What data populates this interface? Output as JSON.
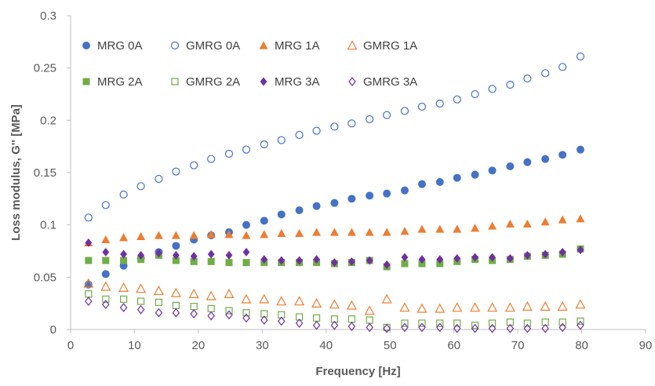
{
  "chart_data": {
    "type": "scatter",
    "title": "",
    "xlabel": "Frequency [Hz]",
    "ylabel": "Loss modulus, G'' [MPa]",
    "xlim": [
      0,
      90
    ],
    "ylim": [
      0,
      0.3
    ],
    "x_ticks": [
      "0",
      "10",
      "20",
      "30",
      "40",
      "50",
      "60",
      "70",
      "80",
      "90"
    ],
    "y_ticks": [
      "0",
      "0.05",
      "0.1",
      "0.15",
      "0.2",
      "0.25",
      "0.3"
    ],
    "grid": false,
    "legend_position": "top-left, inside plot, 4 columns x 2 rows",
    "x": [
      2.8,
      5.5,
      8.3,
      11.0,
      13.8,
      16.5,
      19.3,
      22.0,
      24.8,
      27.5,
      30.3,
      33.0,
      35.8,
      38.5,
      41.3,
      44.0,
      46.8,
      49.5,
      52.3,
      55.0,
      57.8,
      60.5,
      63.3,
      66.0,
      68.8,
      71.5,
      74.3,
      77.0,
      79.8
    ],
    "series": [
      {
        "name": "MRG 0A",
        "color": "#4472C4",
        "marker": "circle",
        "filled": true,
        "values": [
          0.043,
          0.053,
          0.061,
          0.068,
          0.074,
          0.08,
          0.086,
          0.09,
          0.093,
          0.1,
          0.104,
          0.11,
          0.114,
          0.118,
          0.121,
          0.125,
          0.128,
          0.13,
          0.133,
          0.139,
          0.141,
          0.145,
          0.148,
          0.152,
          0.156,
          0.16,
          0.163,
          0.167,
          0.172
        ]
      },
      {
        "name": "GMRG 0A",
        "color": "#4472C4",
        "marker": "circle",
        "filled": false,
        "values": [
          0.107,
          0.119,
          0.129,
          0.137,
          0.144,
          0.151,
          0.157,
          0.163,
          0.168,
          0.172,
          0.177,
          0.181,
          0.186,
          0.19,
          0.194,
          0.197,
          0.201,
          0.205,
          0.209,
          0.213,
          0.216,
          0.22,
          0.225,
          0.23,
          0.234,
          0.24,
          0.245,
          0.251,
          0.261
        ]
      },
      {
        "name": "MRG 1A",
        "color": "#ED7D31",
        "marker": "triangle",
        "filled": true,
        "values": [
          0.083,
          0.086,
          0.088,
          0.089,
          0.09,
          0.09,
          0.09,
          0.091,
          0.091,
          0.09,
          0.091,
          0.092,
          0.092,
          0.093,
          0.093,
          0.093,
          0.093,
          0.093,
          0.094,
          0.096,
          0.096,
          0.096,
          0.097,
          0.099,
          0.101,
          0.101,
          0.103,
          0.105,
          0.106
        ]
      },
      {
        "name": "GMRG 1A",
        "color": "#ED7D31",
        "marker": "triangle",
        "filled": false,
        "values": [
          0.044,
          0.041,
          0.04,
          0.039,
          0.037,
          0.035,
          0.034,
          0.032,
          0.034,
          0.029,
          0.029,
          0.027,
          0.027,
          0.025,
          0.024,
          0.023,
          0.018,
          0.029,
          0.021,
          0.02,
          0.02,
          0.021,
          0.021,
          0.021,
          0.021,
          0.022,
          0.022,
          0.022,
          0.024
        ]
      },
      {
        "name": "MRG 2A",
        "color": "#70AD47",
        "marker": "square",
        "filled": true,
        "values": [
          0.066,
          0.066,
          0.066,
          0.067,
          0.071,
          0.066,
          0.065,
          0.065,
          0.064,
          0.064,
          0.064,
          0.064,
          0.064,
          0.064,
          0.063,
          0.064,
          0.066,
          0.06,
          0.063,
          0.063,
          0.063,
          0.065,
          0.067,
          0.066,
          0.067,
          0.07,
          0.071,
          0.072,
          0.077
        ]
      },
      {
        "name": "GMRG 2A",
        "color": "#70AD47",
        "marker": "square",
        "filled": false,
        "values": [
          0.034,
          0.029,
          0.029,
          0.027,
          0.026,
          0.023,
          0.022,
          0.02,
          0.018,
          0.016,
          0.015,
          0.014,
          0.012,
          0.011,
          0.01,
          0.01,
          0.009,
          0.002,
          0.006,
          0.006,
          0.006,
          0.006,
          0.004,
          0.006,
          0.007,
          0.006,
          0.007,
          0.007,
          0.008
        ]
      },
      {
        "name": "MRG 3A",
        "color": "#7030A0",
        "marker": "diamond",
        "filled": true,
        "values": [
          0.083,
          0.074,
          0.072,
          0.071,
          0.073,
          0.071,
          0.07,
          0.072,
          0.071,
          0.074,
          0.067,
          0.066,
          0.066,
          0.067,
          0.064,
          0.065,
          0.066,
          0.062,
          0.069,
          0.067,
          0.067,
          0.068,
          0.069,
          0.069,
          0.068,
          0.071,
          0.072,
          0.074,
          0.076
        ]
      },
      {
        "name": "GMRG 3A",
        "color": "#7030A0",
        "marker": "diamond",
        "filled": false,
        "values": [
          0.027,
          0.024,
          0.021,
          0.019,
          0.016,
          0.016,
          0.015,
          0.013,
          0.014,
          0.011,
          0.009,
          0.008,
          0.006,
          0.004,
          0.004,
          0.003,
          0.002,
          0.001,
          0.002,
          0.002,
          0.002,
          0.001,
          0.001,
          0.001,
          0.001,
          0.001,
          0.001,
          0.002,
          0.004
        ]
      }
    ]
  }
}
